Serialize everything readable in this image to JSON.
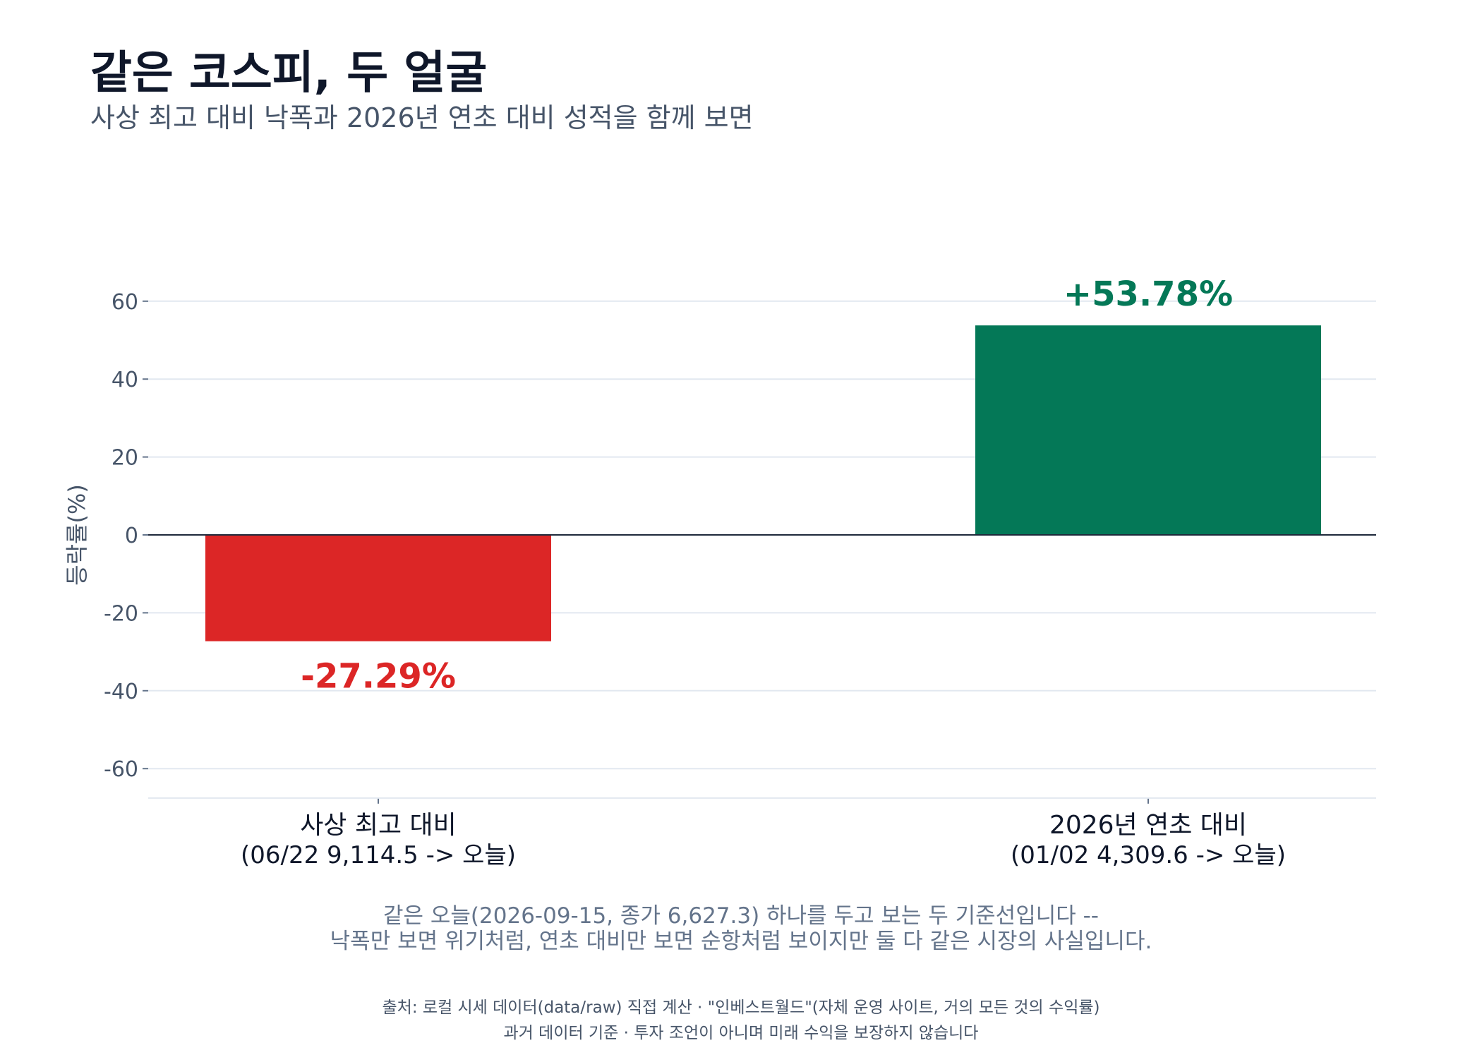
{
  "header": {
    "title": "같은 코스피, 두 얼굴",
    "subtitle": "사상 최고 대비 낙폭과 2026년 연초 대비 성적을 함께 보면"
  },
  "chart_data": {
    "type": "bar",
    "title": "같은 코스피, 두 얼굴",
    "subtitle": "사상 최고 대비 낙폭과 2026년 연초 대비 성적을 함께 보면",
    "ylabel": "등락률(%)",
    "xlabel": "",
    "ylim": [
      -67,
      70
    ],
    "yticks": [
      -60,
      -40,
      -20,
      0,
      20,
      40,
      60
    ],
    "grid": true,
    "categories": [
      {
        "line1": "사상 최고 대비",
        "line2": "(06/22 9,114.5 -> 오늘)"
      },
      {
        "line1": "2026년 연초 대비",
        "line2": "(01/02 4,309.6 -> 오늘)"
      }
    ],
    "values": [
      -27.29,
      53.78
    ],
    "value_labels": [
      "-27.29%",
      "+53.78%"
    ],
    "colors": [
      "#dc2626",
      "#047857"
    ]
  },
  "notes": {
    "line1": "같은 오늘(2026-09-15, 종가 6,627.3) 하나를 두고 보는 두 기준선입니다 --",
    "line2": "낙폭만 보면 위기처럼, 연초 대비만 보면 순항처럼 보이지만 둘 다 같은 시장의 사실입니다."
  },
  "source": {
    "line1": "출처: 로컬 시세 데이터(data/raw) 직접 계산 · \"인베스트월드\"(자체 운영 사이트, 거의 모든 것의 수익률)",
    "line2": "과거 데이터 기준 · 투자 조언이 아니며 미래 수익을 보장하지 않습니다"
  }
}
